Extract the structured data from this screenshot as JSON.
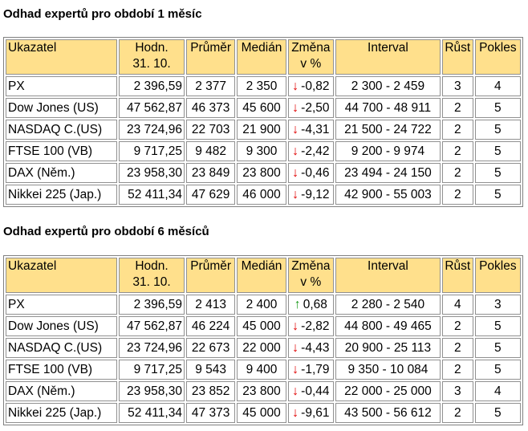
{
  "colors": {
    "header_bg": "#ffe08c",
    "arrow_down": "#e00000",
    "arrow_up": "#1a9a1a"
  },
  "headers": {
    "indicator": "Ukazatel",
    "value_line1": "Hodn.",
    "value_line2": "31. 10.",
    "average": "Průměr",
    "median": "Medián",
    "change_line1": "Změna",
    "change_line2": "v %",
    "interval": "Interval",
    "growth": "Růst",
    "decline": "Pokles"
  },
  "sections": [
    {
      "title": "Odhad expertů pro období 1 měsíc",
      "rows": [
        {
          "name": "PX",
          "value": "2 396,59",
          "average": "2 377",
          "median": "2 350",
          "direction": "down",
          "arrow": "↓",
          "change": "-0,82",
          "interval": "2 300 - 2 459",
          "growth": "3",
          "decline": "4"
        },
        {
          "name": "Dow Jones (US)",
          "value": "47 562,87",
          "average": "46 373",
          "median": "45 600",
          "direction": "down",
          "arrow": "↓",
          "change": "-2,50",
          "interval": "44 700 - 48 911",
          "growth": "2",
          "decline": "5"
        },
        {
          "name": "NASDAQ C.(US)",
          "value": "23 724,96",
          "average": "22 703",
          "median": "21 900",
          "direction": "down",
          "arrow": "↓",
          "change": "-4,31",
          "interval": "21 500 - 24 722",
          "growth": "2",
          "decline": "5"
        },
        {
          "name": "FTSE 100 (VB)",
          "value": "9 717,25",
          "average": "9 482",
          "median": "9 300",
          "direction": "down",
          "arrow": "↓",
          "change": "-2,42",
          "interval": "9 200 - 9 974",
          "growth": "2",
          "decline": "5"
        },
        {
          "name": "DAX (Něm.)",
          "value": "23 958,30",
          "average": "23 849",
          "median": "23 800",
          "direction": "down",
          "arrow": "↓",
          "change": "-0,46",
          "interval": "23 494 - 24 150",
          "growth": "2",
          "decline": "5"
        },
        {
          "name": "Nikkei 225 (Jap.)",
          "value": "52 411,34",
          "average": "47 629",
          "median": "46 000",
          "direction": "down",
          "arrow": "↓",
          "change": "-9,12",
          "interval": "42 900 - 55 003",
          "growth": "2",
          "decline": "5"
        }
      ]
    },
    {
      "title": "Odhad expertů pro období 6 měsíců",
      "rows": [
        {
          "name": "PX",
          "value": "2 396,59",
          "average": "2 413",
          "median": "2 400",
          "direction": "up",
          "arrow": "↑",
          "change": "0,68",
          "interval": "2 280 - 2 540",
          "growth": "4",
          "decline": "3"
        },
        {
          "name": "Dow Jones (US)",
          "value": "47 562,87",
          "average": "46 224",
          "median": "45 000",
          "direction": "down",
          "arrow": "↓",
          "change": "-2,82",
          "interval": "44 800 - 49 465",
          "growth": "2",
          "decline": "5"
        },
        {
          "name": "NASDAQ C.(US)",
          "value": "23 724,96",
          "average": "22 673",
          "median": "22 000",
          "direction": "down",
          "arrow": "↓",
          "change": "-4,43",
          "interval": "20 900 - 25 113",
          "growth": "2",
          "decline": "5"
        },
        {
          "name": "FTSE 100 (VB)",
          "value": "9 717,25",
          "average": "9 543",
          "median": "9 400",
          "direction": "down",
          "arrow": "↓",
          "change": "-1,79",
          "interval": "9 350 - 10 084",
          "growth": "2",
          "decline": "5"
        },
        {
          "name": "DAX (Něm.)",
          "value": "23 958,30",
          "average": "23 852",
          "median": "23 800",
          "direction": "down",
          "arrow": "↓",
          "change": "-0,44",
          "interval": "22 000 - 25 000",
          "growth": "3",
          "decline": "4"
        },
        {
          "name": "Nikkei 225 (Jap.)",
          "value": "52 411,34",
          "average": "47 373",
          "median": "45 000",
          "direction": "down",
          "arrow": "↓",
          "change": "-9,61",
          "interval": "43 500 - 56 612",
          "growth": "2",
          "decline": "5"
        }
      ]
    }
  ]
}
